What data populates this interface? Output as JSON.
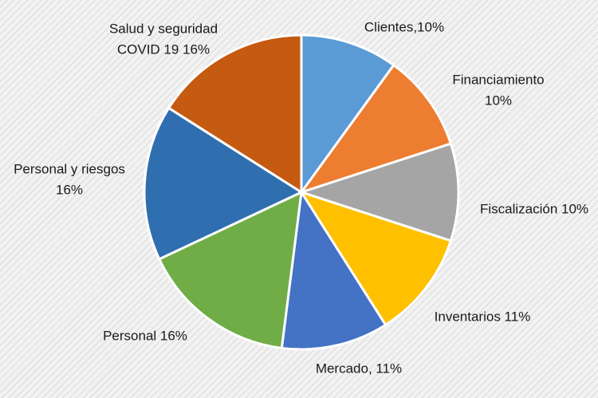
{
  "chart_data": {
    "type": "pie",
    "values": [
      10,
      10,
      10,
      11,
      11,
      16,
      16,
      16
    ],
    "value_labels": [
      [
        "Clientes,10%"
      ],
      [
        "Financiamiento",
        "10%"
      ],
      [
        "Fiscalización 10%"
      ],
      [
        "Inventarios 11%"
      ],
      [
        "Mercado, 11%"
      ],
      [
        "Personal  16%"
      ],
      [
        "Personal y riesgos",
        "16%"
      ],
      [
        "Salud y seguridad",
        "COVID 19 16%"
      ]
    ],
    "colors": [
      "#5b9bd5",
      "#ed7d31",
      "#a5a5a5",
      "#ffc000",
      "#4472c4",
      "#70ad47",
      "#2f6fb0",
      "#c55a11"
    ]
  }
}
